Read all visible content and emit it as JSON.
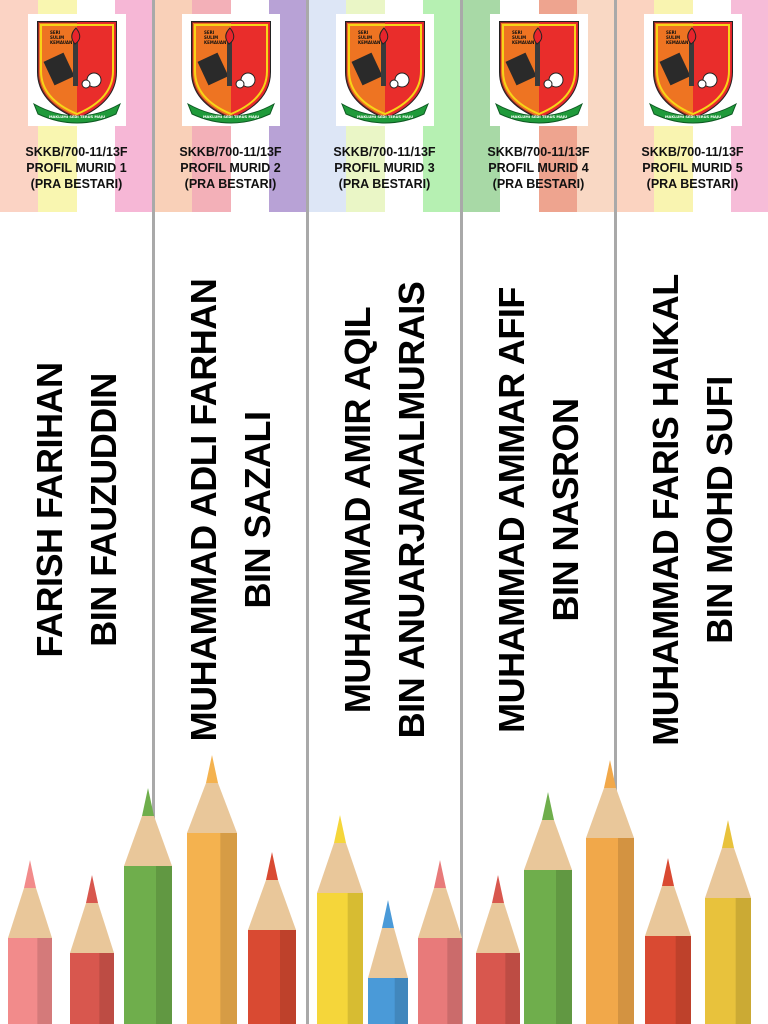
{
  "spines": [
    {
      "code": "SKKB/700-11/13F",
      "profile": "PROFIL MURID 1",
      "group": "(PRA BESTARI)",
      "name_line1": "FARISH FARIHAN",
      "name_line2": "BIN FAUZUDDIN",
      "stripe_colors": [
        "#fbd3c4",
        "#f9f6b0",
        "#ffffff",
        "#f6b7d6"
      ]
    },
    {
      "code": "SKKB/700-11/13F",
      "profile": "PROFIL MURID 2",
      "group": "(PRA BESTARI)",
      "name_line1": "MUHAMMAD ADLI FARHAN",
      "name_line2": "BIN SAZALI",
      "stripe_colors": [
        "#f9d0b8",
        "#f3b0b8",
        "#ffffff",
        "#b8a2d6"
      ]
    },
    {
      "code": "SKKB/700-11/13F",
      "profile": "PROFIL MURID 3",
      "group": "(PRA BESTARI)",
      "name_line1": "MUHAMMAD AMIR AQIL",
      "name_line2": "BIN ANUARJAMALMURAIS",
      "stripe_colors": [
        "#dde6f6",
        "#eaf6c6",
        "#ffffff",
        "#b6f0b2"
      ]
    },
    {
      "code": "SKKB/700-11/13F",
      "profile": "PROFIL MURID 4",
      "group": "(PRA BESTARI)",
      "name_line1": "MUHAMMAD AMMAR AFIF",
      "name_line2": "BIN NASRON",
      "stripe_colors": [
        "#a8d9a6",
        "#ffffff",
        "#eea48f",
        "#f9d8c4"
      ]
    },
    {
      "code": "SKKB/700-11/13F",
      "profile": "PROFIL MURID 5",
      "group": "(PRA BESTARI)",
      "name_line1": "MUHAMMAD FARIS HAIKAL",
      "name_line2": "BIN MOHD SUFI",
      "stripe_colors": [
        "#fbd3c0",
        "#f9f4b0",
        "#ffffff",
        "#f6bcd8"
      ]
    }
  ],
  "logo": {
    "top_text": [
      "SERI",
      "SULIM",
      "KEMAUAN"
    ],
    "ribbon_text": "MAKLUMI SEDI TERUS MAJU",
    "colors": {
      "red": "#e8242c",
      "yellow": "#f7d417",
      "green": "#1f9a3a"
    }
  },
  "pencil_colors": [
    "#f28b8b",
    "#d8574e",
    "#6fae4c",
    "#f4b24f",
    "#d94a32",
    "#f5d63a",
    "#4a9ad8",
    "#e87a7a",
    "#f1a84a",
    "#e8c23c"
  ]
}
